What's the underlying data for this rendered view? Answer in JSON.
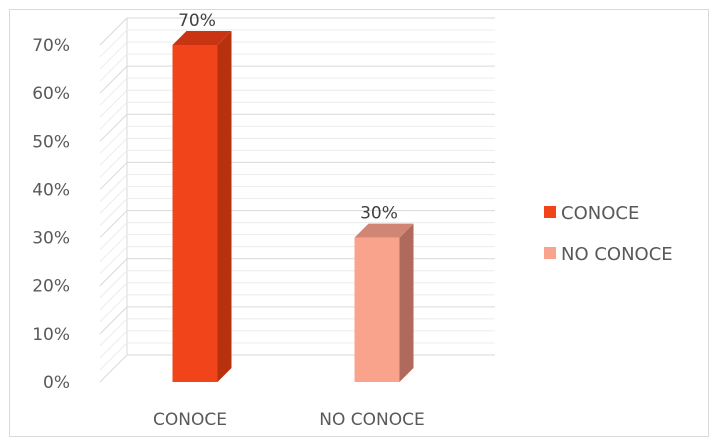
{
  "chart_data": {
    "type": "bar",
    "style": "3d-column",
    "categories": [
      "CONOCE",
      "NO CONOCE"
    ],
    "values": [
      70,
      30
    ],
    "data_labels": [
      "70%",
      "30%"
    ],
    "ylim": [
      0,
      70
    ],
    "yticks": [
      "0%",
      "10%",
      "20%",
      "30%",
      "40%",
      "50%",
      "60%",
      "70%"
    ],
    "grid": true,
    "legend": {
      "position": "right",
      "items": [
        {
          "label": "CONOCE",
          "color": "#f1441a"
        },
        {
          "label": "NO CONOCE",
          "color": "#f9a38d"
        }
      ]
    },
    "colors": {
      "front": [
        "#f1441a",
        "#f9a38d"
      ],
      "side": [
        "#b8310f",
        "#b06a5c"
      ],
      "top": [
        "#c93512",
        "#d08575"
      ]
    }
  }
}
